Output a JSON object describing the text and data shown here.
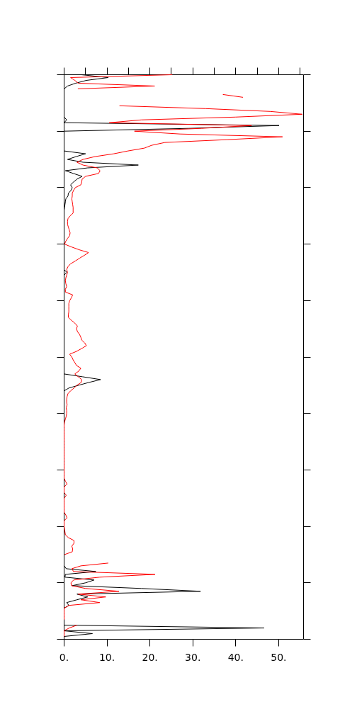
{
  "chart_data": {
    "type": "line",
    "orientation": "horizontal",
    "tick_labels": "x",
    "line_style": "solid",
    "categories": [
      null,
      null,
      null,
      null,
      null,
      null,
      null,
      null,
      null,
      null,
      null,
      null,
      null,
      null,
      null,
      null,
      null,
      null,
      null,
      null,
      null,
      null,
      null,
      null,
      null,
      null,
      null,
      null,
      null,
      null,
      null,
      null,
      null,
      null,
      null,
      null,
      null,
      null,
      null,
      null,
      null,
      null,
      null,
      null,
      null,
      null,
      null,
      null,
      null,
      null,
      null,
      null,
      null,
      null,
      null,
      null,
      null,
      null,
      null,
      null,
      null,
      null,
      null,
      null,
      null,
      null,
      null,
      null,
      null,
      null,
      null,
      null,
      null,
      null,
      null,
      null,
      null,
      null,
      null,
      null,
      null,
      null,
      null,
      null,
      null,
      null,
      null,
      null,
      null,
      null,
      null,
      null,
      null,
      null,
      null,
      null,
      null,
      null,
      null,
      null,
      null,
      null,
      null,
      null,
      null,
      null,
      null,
      null,
      null,
      null,
      null,
      null,
      null,
      null,
      null,
      null,
      null,
      null,
      null,
      null,
      null,
      null,
      null,
      null,
      null,
      null,
      null,
      null,
      null,
      null,
      null,
      null,
      null,
      null,
      null,
      null,
      null,
      null,
      null,
      null,
      null,
      null,
      null,
      null,
      null,
      null,
      null,
      null,
      null,
      null,
      null,
      null,
      null,
      null,
      null,
      null,
      null,
      null,
      null,
      null,
      null,
      null,
      null,
      null,
      null,
      null,
      null,
      null,
      null,
      null,
      null,
      null,
      null,
      null,
      null,
      null,
      null,
      null,
      null,
      null,
      null,
      null,
      null,
      null,
      null,
      null,
      null,
      null,
      null,
      null,
      null,
      null,
      null,
      null,
      null,
      null,
      null,
      null,
      null,
      null,
      null
    ],
    "series": [
      {
        "color": "#000000",
        "values": [
          4.0,
          10.3,
          5.2,
          2.7,
          0.8,
          0,
          0,
          0,
          0,
          0,
          0,
          0,
          0,
          0,
          0,
          0,
          0.6,
          0,
          50.1,
          29,
          0,
          0,
          0,
          0,
          0,
          0,
          0,
          0,
          5.0,
          2.8,
          0.8,
          4.4,
          17.3,
          5.5,
          0.3,
          2.2,
          4.2,
          3.0,
          2.2,
          1.5,
          1.9,
          1.6,
          1.0,
          0.9,
          0.4,
          0.3,
          0.2,
          0.1,
          0,
          0,
          0,
          0,
          0,
          0,
          0,
          0,
          0,
          0,
          0,
          0,
          0,
          0,
          0,
          0,
          0,
          0,
          0,
          0,
          0,
          0,
          0.6,
          0,
          0,
          0,
          0,
          0,
          0,
          0,
          0,
          0,
          0,
          0,
          0,
          0,
          0,
          0,
          0,
          0,
          0,
          0,
          0,
          0,
          0,
          0,
          0,
          0,
          0,
          0,
          0,
          0,
          0,
          0,
          0,
          0,
          0,
          0,
          0,
          4.3,
          8.5,
          5.8,
          3.4,
          1.1,
          0,
          0,
          0,
          0,
          0,
          0,
          0,
          0,
          0,
          0,
          0,
          0,
          0,
          0,
          0,
          0,
          0,
          0,
          0,
          0,
          0,
          0,
          0,
          0,
          0,
          0,
          0,
          0,
          0,
          0,
          0,
          0,
          0,
          0,
          0,
          0,
          0,
          0,
          0,
          0,
          0,
          0,
          0,
          0,
          0,
          0,
          0,
          0,
          0,
          0,
          0,
          0,
          0,
          0,
          0,
          0,
          0,
          0,
          0,
          0,
          0,
          0,
          0,
          0.5,
          7.4,
          0.3,
          0.2,
          7.0,
          5.0,
          1.9,
          18,
          31.8,
          3.0,
          5.5,
          3.0,
          0.6,
          1.1,
          0,
          0,
          0,
          0,
          0,
          0,
          0,
          46.6,
          0,
          6.6,
          0,
          0
        ]
      },
      {
        "color": "#ff0000",
        "values": [
          25.2,
          1.5,
          2.5,
          3.3,
          21.1,
          3.2,
          null,
          37,
          41.7,
          null,
          null,
          12.9,
          33,
          48,
          55.5,
          40,
          18,
          10.5,
          43.7,
          32,
          16.4,
          27,
          50.9,
          38,
          23.5,
          20.4,
          18.7,
          14.9,
          11.6,
          7.2,
          4.4,
          3.0,
          4.4,
          7.7,
          8.4,
          8.0,
          5.0,
          4.2,
          4.1,
          3.9,
          2.6,
          2.2,
          1.9,
          1.9,
          1.8,
          1.9,
          2.0,
          2.1,
          2.1,
          2.1,
          1.4,
          0.9,
          0.8,
          0.8,
          1.0,
          1.2,
          1.4,
          1.3,
          0.8,
          0.4,
          0.1,
          1.7,
          3.5,
          5.7,
          4.7,
          3.6,
          2.6,
          1.5,
          0.9,
          0.6,
          0.8,
          0.6,
          0.4,
          0.3,
          0.4,
          0.6,
          0.3,
          0.3,
          2.0,
          1.7,
          1.3,
          1.1,
          1.1,
          1.1,
          1.1,
          1.0,
          1.0,
          1.7,
          2.5,
          3.1,
          2.9,
          3.1,
          3.6,
          3.9,
          4.1,
          4.8,
          5.2,
          4.1,
          2.9,
          1.3,
          1.8,
          2.1,
          2.5,
          2.9,
          3.9,
          3.4,
          2.5,
          3.3,
          4.1,
          4.0,
          3.0,
          2.3,
          1.5,
          0.9,
          0.7,
          0.6,
          0.6,
          0.7,
          0.5,
          0.6,
          0.6,
          0.5,
          0.3,
          0.1,
          0,
          0,
          0,
          0,
          0,
          0,
          0,
          0,
          0,
          0,
          0,
          0,
          0,
          0,
          0,
          0,
          0,
          0,
          0,
          0,
          0.3,
          0.7,
          0,
          0,
          0,
          0.5,
          0,
          0,
          0,
          0,
          0,
          0,
          0.4,
          0.7,
          0,
          0,
          0,
          0.1,
          0.2,
          0.3,
          1.0,
          2.3,
          2.3,
          1.8,
          2.0,
          1.9,
          0.1,
          null,
          null,
          10.3,
          3.9,
          1.8,
          2.2,
          21.2,
          8.3,
          2.2,
          1.6,
          1.7,
          5.0,
          12.8,
          3.3,
          9.7,
          3.9,
          8.3,
          1.1,
          0,
          0,
          0,
          0,
          0,
          null,
          3.0,
          1.2,
          0,
          0,
          0,
          null
        ]
      }
    ],
    "xlim": [
      0,
      55.8
    ],
    "xticks": [
      {
        "value": 0,
        "label": "0."
      },
      {
        "value": 5,
        "label": null
      },
      {
        "value": 10,
        "label": "10."
      },
      {
        "value": 15,
        "label": null
      },
      {
        "value": 20,
        "label": "20."
      },
      {
        "value": 25,
        "label": null
      },
      {
        "value": 30,
        "label": "30."
      },
      {
        "value": 35,
        "label": null
      },
      {
        "value": 40,
        "label": "40."
      },
      {
        "value": 45,
        "label": null
      },
      {
        "value": 50,
        "label": "50."
      },
      {
        "value": 55,
        "label": null
      }
    ]
  }
}
